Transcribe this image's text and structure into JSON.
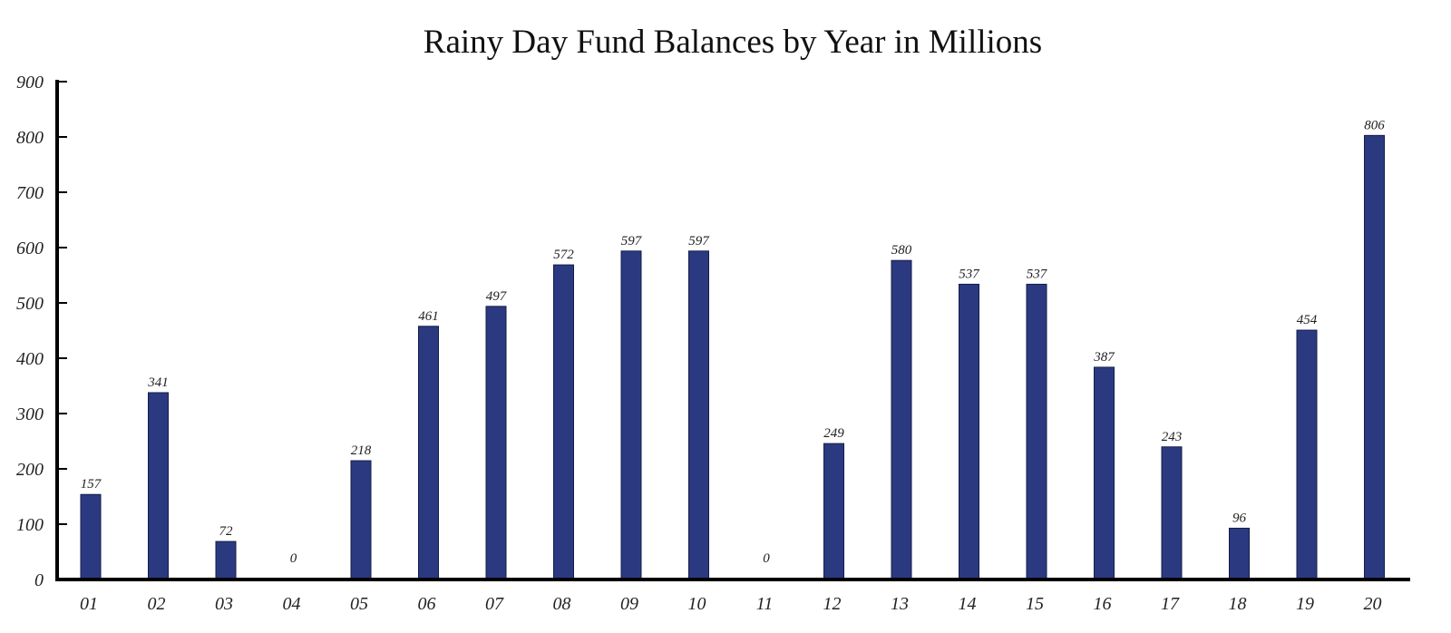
{
  "chart_data": {
    "type": "bar",
    "title": "Rainy Day Fund Balances by Year in Millions",
    "xlabel": "",
    "ylabel": "",
    "ylim": [
      0,
      900
    ],
    "yticks": [
      "0",
      "100",
      "200",
      "300",
      "400",
      "500",
      "600",
      "700",
      "800",
      "900"
    ],
    "grid": false,
    "legend": "none",
    "categories": [
      "01",
      "02",
      "03",
      "04",
      "05",
      "06",
      "07",
      "08",
      "09",
      "10",
      "11",
      "12",
      "13",
      "14",
      "15",
      "16",
      "17",
      "18",
      "19",
      "20"
    ],
    "values": [
      157,
      341,
      72,
      0,
      218,
      461,
      497,
      572,
      597,
      597,
      0,
      249,
      580,
      537,
      537,
      387,
      243,
      96,
      454,
      806
    ],
    "bar_color": "#2b3a80",
    "bar_edge_color": "#141c4a"
  }
}
